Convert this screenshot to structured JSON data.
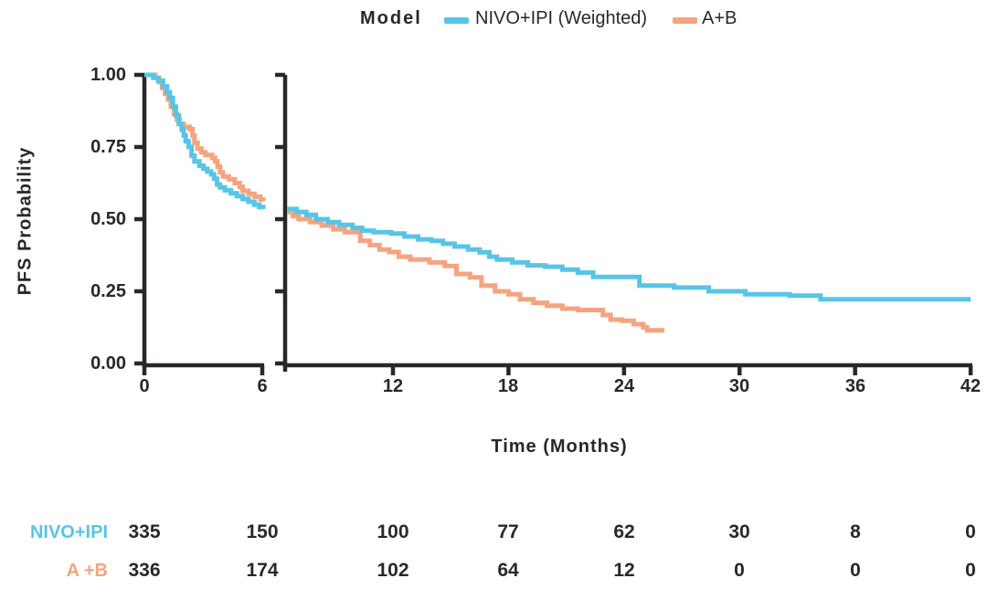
{
  "legend": {
    "title": "Model",
    "items": [
      {
        "label": "NIVO+IPI (Weighted)",
        "color": "#58C4E6"
      },
      {
        "label": "A+B",
        "color": "#F4A47F"
      }
    ]
  },
  "colors": {
    "axis": "#2B2728",
    "text": "#2B2728",
    "nivo_ipi": "#58C4E6",
    "a_plus_b": "#F4A47F"
  },
  "chart_data": {
    "type": "line",
    "subtype": "kaplan-meier-step",
    "title": "",
    "x_axis": {
      "label": "Time (Months)",
      "ticks": [
        0,
        6,
        12,
        18,
        24,
        30,
        36,
        42
      ],
      "break_between": [
        6,
        6.5
      ],
      "range": [
        0,
        42
      ]
    },
    "y_axis": {
      "label": "PFS Probability",
      "ticks": [
        "1.00",
        "0.75",
        "0.50",
        "0.25",
        "0.00"
      ],
      "tick_values": [
        1.0,
        0.75,
        0.5,
        0.25,
        0.0
      ],
      "range": [
        0,
        1
      ]
    },
    "legend_position": "top",
    "grid": false,
    "series": [
      {
        "name": "NIVO+IPI (Weighted)",
        "color": "#58C4E6",
        "seg1": [
          [
            0,
            1.0
          ],
          [
            0.45,
            0.99
          ],
          [
            0.7,
            0.98
          ],
          [
            0.95,
            0.96
          ],
          [
            1.15,
            0.94
          ],
          [
            1.3,
            0.92
          ],
          [
            1.45,
            0.89
          ],
          [
            1.6,
            0.86
          ],
          [
            1.75,
            0.83
          ],
          [
            1.9,
            0.81
          ],
          [
            2.0,
            0.79
          ],
          [
            2.1,
            0.77
          ],
          [
            2.25,
            0.75
          ],
          [
            2.4,
            0.72
          ],
          [
            2.55,
            0.7
          ],
          [
            2.8,
            0.685
          ],
          [
            3.0,
            0.675
          ],
          [
            3.2,
            0.665
          ],
          [
            3.4,
            0.655
          ],
          [
            3.55,
            0.64
          ],
          [
            3.7,
            0.62
          ],
          [
            3.85,
            0.61
          ],
          [
            4.1,
            0.6
          ],
          [
            4.4,
            0.59
          ],
          [
            4.7,
            0.58
          ],
          [
            5.0,
            0.57
          ],
          [
            5.3,
            0.56
          ],
          [
            5.6,
            0.55
          ],
          [
            5.85,
            0.542
          ],
          [
            6.05,
            0.535
          ]
        ],
        "seg2": [
          [
            6.5,
            0.535
          ],
          [
            7.0,
            0.525
          ],
          [
            7.5,
            0.515
          ],
          [
            8.0,
            0.5
          ],
          [
            8.6,
            0.49
          ],
          [
            9.2,
            0.48
          ],
          [
            9.9,
            0.47
          ],
          [
            10.4,
            0.46
          ],
          [
            11.0,
            0.455
          ],
          [
            11.9,
            0.45
          ],
          [
            12.6,
            0.44
          ],
          [
            13.3,
            0.43
          ],
          [
            14.0,
            0.425
          ],
          [
            14.6,
            0.415
          ],
          [
            15.2,
            0.405
          ],
          [
            15.9,
            0.395
          ],
          [
            16.5,
            0.385
          ],
          [
            17.0,
            0.37
          ],
          [
            17.4,
            0.36
          ],
          [
            18.2,
            0.35
          ],
          [
            19.0,
            0.34
          ],
          [
            19.9,
            0.335
          ],
          [
            20.8,
            0.325
          ],
          [
            21.6,
            0.315
          ],
          [
            22.4,
            0.3
          ],
          [
            24.8,
            0.27
          ],
          [
            26.6,
            0.263
          ],
          [
            28.4,
            0.25
          ],
          [
            30.3,
            0.24
          ],
          [
            32.6,
            0.235
          ],
          [
            34.2,
            0.222
          ],
          [
            42.0,
            0.222
          ]
        ]
      },
      {
        "name": "A+B",
        "color": "#F4A47F",
        "seg1": [
          [
            0,
            1.0
          ],
          [
            0.55,
            0.99
          ],
          [
            0.75,
            0.975
          ],
          [
            0.9,
            0.955
          ],
          [
            1.05,
            0.935
          ],
          [
            1.2,
            0.915
          ],
          [
            1.35,
            0.89
          ],
          [
            1.5,
            0.865
          ],
          [
            1.65,
            0.845
          ],
          [
            1.8,
            0.83
          ],
          [
            2.0,
            0.82
          ],
          [
            2.3,
            0.812
          ],
          [
            2.45,
            0.79
          ],
          [
            2.55,
            0.765
          ],
          [
            2.7,
            0.745
          ],
          [
            2.9,
            0.732
          ],
          [
            3.1,
            0.722
          ],
          [
            3.45,
            0.712
          ],
          [
            3.6,
            0.7
          ],
          [
            3.72,
            0.682
          ],
          [
            3.85,
            0.662
          ],
          [
            4.0,
            0.648
          ],
          [
            4.3,
            0.638
          ],
          [
            4.6,
            0.625
          ],
          [
            4.85,
            0.612
          ],
          [
            5.0,
            0.598
          ],
          [
            5.3,
            0.588
          ],
          [
            5.6,
            0.578
          ],
          [
            5.9,
            0.568
          ],
          [
            6.05,
            0.562
          ]
        ],
        "seg2": [
          [
            6.5,
            0.525
          ],
          [
            6.8,
            0.51
          ],
          [
            7.1,
            0.5
          ],
          [
            7.7,
            0.49
          ],
          [
            8.3,
            0.478
          ],
          [
            8.9,
            0.465
          ],
          [
            9.5,
            0.455
          ],
          [
            10.3,
            0.425
          ],
          [
            10.8,
            0.41
          ],
          [
            11.3,
            0.395
          ],
          [
            11.8,
            0.386
          ],
          [
            12.3,
            0.37
          ],
          [
            12.9,
            0.36
          ],
          [
            13.9,
            0.35
          ],
          [
            14.7,
            0.338
          ],
          [
            15.3,
            0.31
          ],
          [
            16.0,
            0.298
          ],
          [
            16.6,
            0.27
          ],
          [
            17.3,
            0.25
          ],
          [
            18.0,
            0.24
          ],
          [
            18.6,
            0.222
          ],
          [
            19.3,
            0.21
          ],
          [
            20.0,
            0.2
          ],
          [
            20.8,
            0.19
          ],
          [
            21.6,
            0.185
          ],
          [
            22.9,
            0.168
          ],
          [
            23.3,
            0.152
          ],
          [
            23.9,
            0.148
          ],
          [
            24.5,
            0.136
          ],
          [
            25.0,
            0.125
          ],
          [
            25.2,
            0.115
          ],
          [
            26.1,
            0.115
          ]
        ]
      }
    ]
  },
  "risk_table": {
    "at_months": [
      0,
      6,
      12,
      18,
      24,
      30,
      36,
      42
    ],
    "rows": [
      {
        "label": "NIVO+IPI",
        "color": "#58C4E6",
        "values": [
          "335",
          "150",
          "100",
          "77",
          "62",
          "30",
          "8",
          "0"
        ]
      },
      {
        "label": "A +B",
        "color": "#F4A47F",
        "values": [
          "336",
          "174",
          "102",
          "64",
          "12",
          "0",
          "0",
          "0"
        ]
      }
    ]
  }
}
